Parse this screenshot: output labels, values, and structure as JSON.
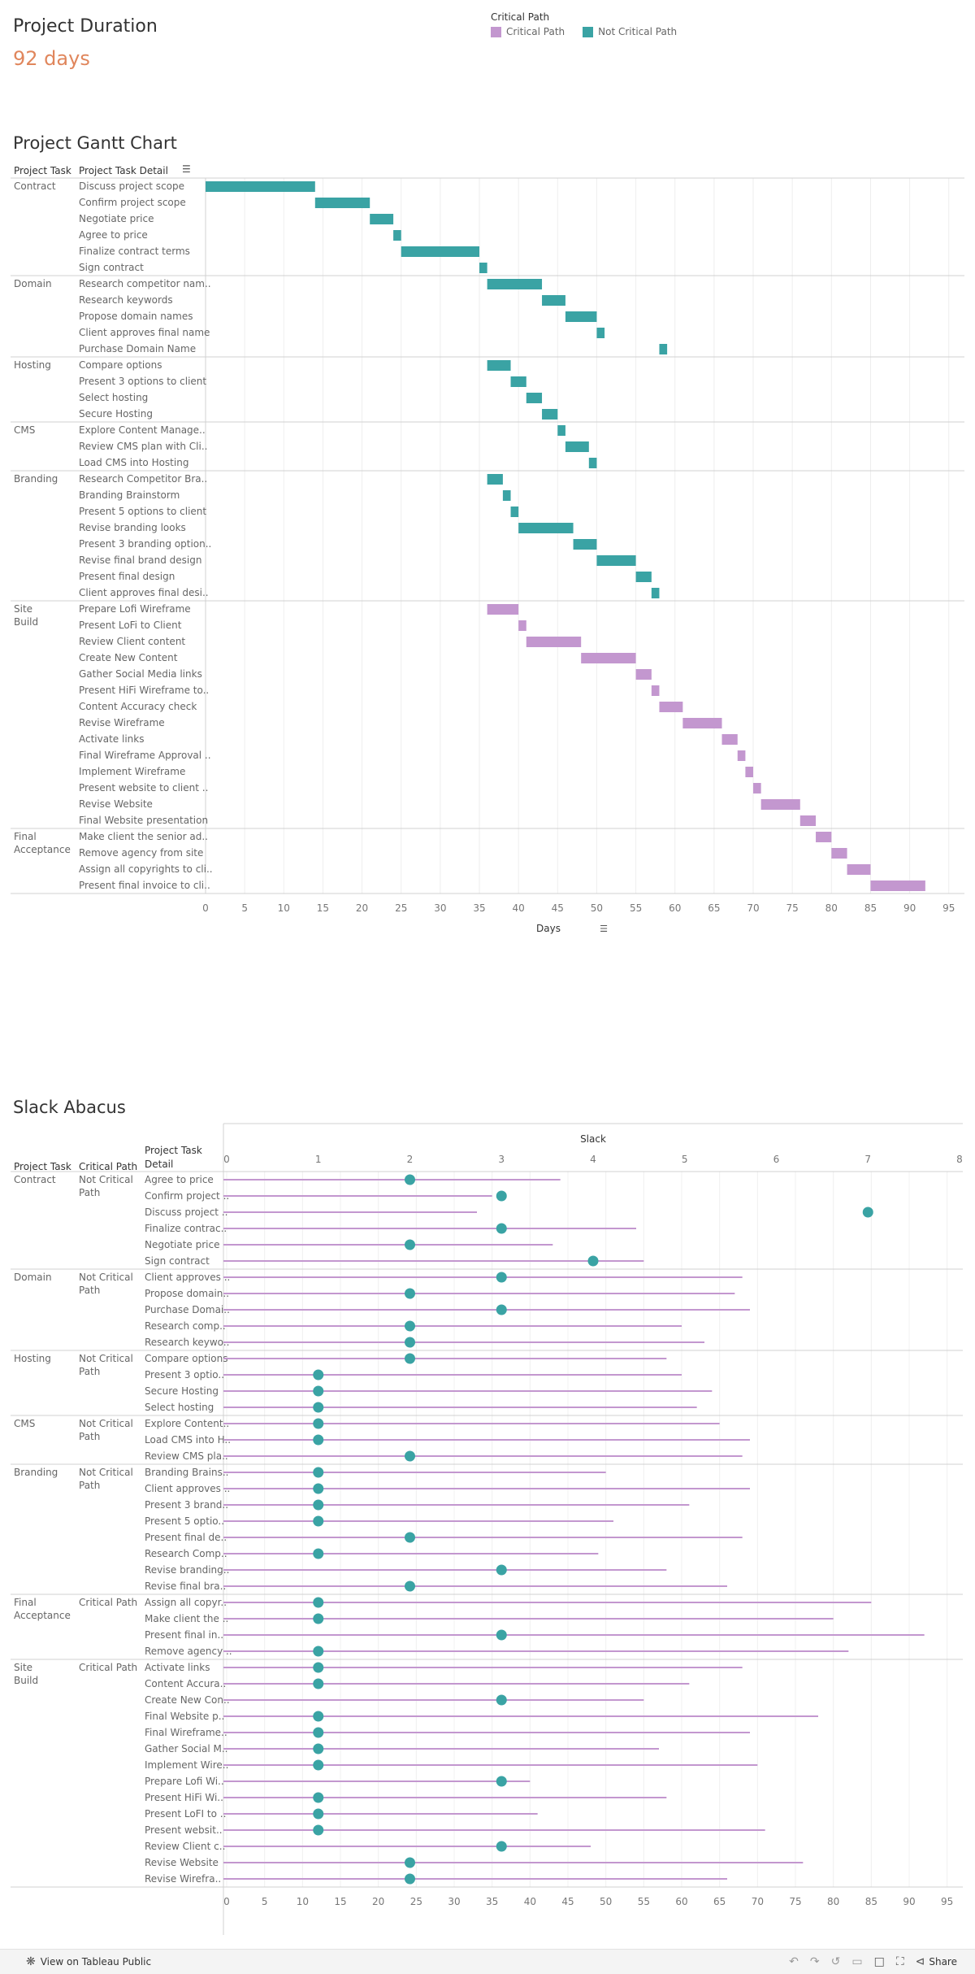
{
  "header": {
    "duration_label": "Project Duration",
    "duration_value": "92 days",
    "legend_title": "Critical Path",
    "legend_items": [
      {
        "label": "Critical Path",
        "color": "#c397cf"
      },
      {
        "label": "Not Critical Path",
        "color": "#3aa3a4"
      }
    ]
  },
  "colors": {
    "critical": "#c397cf",
    "not_critical": "#3aa3a4"
  },
  "gantt": {
    "title": "Project Gantt Chart",
    "col_task": "Project Task",
    "col_detail": "Project Task Detail",
    "sort_icon": "sort-icon",
    "xlabel": "Days"
  },
  "slack": {
    "title": "Slack Abacus",
    "col_task": "Project Task",
    "col_cp": "Critical Path",
    "col_detail": "Project Task Detail",
    "top_axis_label": "Slack"
  },
  "chart_data": [
    {
      "type": "bar",
      "title": "Project Gantt Chart",
      "xlabel": "Days",
      "xlim": [
        0,
        97
      ],
      "xticks": [
        0,
        5,
        10,
        15,
        20,
        25,
        30,
        35,
        40,
        45,
        50,
        55,
        60,
        65,
        70,
        75,
        80,
        85,
        90,
        95
      ],
      "groups": [
        {
          "task": "Contract",
          "rows": [
            {
              "detail": "Discuss project scope",
              "start": 0,
              "end": 14,
              "critical": false
            },
            {
              "detail": "Confirm project scope",
              "start": 14,
              "end": 21,
              "critical": false
            },
            {
              "detail": "Negotiate price",
              "start": 21,
              "end": 24,
              "critical": false
            },
            {
              "detail": "Agree to price",
              "start": 24,
              "end": 25,
              "critical": false
            },
            {
              "detail": "Finalize contract terms",
              "start": 25,
              "end": 35,
              "critical": false
            },
            {
              "detail": "Sign contract",
              "start": 35,
              "end": 36,
              "critical": false
            }
          ]
        },
        {
          "task": "Domain",
          "rows": [
            {
              "detail": "Research competitor nam..",
              "start": 36,
              "end": 43,
              "critical": false
            },
            {
              "detail": "Research keywords",
              "start": 43,
              "end": 46,
              "critical": false
            },
            {
              "detail": "Propose domain names",
              "start": 46,
              "end": 50,
              "critical": false
            },
            {
              "detail": "Client approves final name",
              "start": 50,
              "end": 51,
              "critical": false
            },
            {
              "detail": "Purchase Domain Name",
              "start": 58,
              "end": 59,
              "critical": false
            }
          ]
        },
        {
          "task": "Hosting",
          "rows": [
            {
              "detail": "Compare options",
              "start": 36,
              "end": 39,
              "critical": false
            },
            {
              "detail": "Present 3 options to client",
              "start": 39,
              "end": 41,
              "critical": false
            },
            {
              "detail": "Select hosting",
              "start": 41,
              "end": 43,
              "critical": false
            },
            {
              "detail": "Secure Hosting",
              "start": 43,
              "end": 45,
              "critical": false
            }
          ]
        },
        {
          "task": "CMS",
          "rows": [
            {
              "detail": "Explore Content Manage..",
              "start": 45,
              "end": 46,
              "critical": false
            },
            {
              "detail": "Review CMS plan with Cli..",
              "start": 46,
              "end": 49,
              "critical": false
            },
            {
              "detail": "Load CMS into Hosting",
              "start": 49,
              "end": 50,
              "critical": false
            }
          ]
        },
        {
          "task": "Branding",
          "rows": [
            {
              "detail": "Research Competitor Bra..",
              "start": 36,
              "end": 38,
              "critical": false
            },
            {
              "detail": "Branding Brainstorm",
              "start": 38,
              "end": 39,
              "critical": false
            },
            {
              "detail": "Present 5 options to client",
              "start": 39,
              "end": 40,
              "critical": false
            },
            {
              "detail": "Revise branding looks",
              "start": 40,
              "end": 47,
              "critical": false
            },
            {
              "detail": "Present 3 branding option..",
              "start": 47,
              "end": 50,
              "critical": false
            },
            {
              "detail": "Revise final brand design",
              "start": 50,
              "end": 55,
              "critical": false
            },
            {
              "detail": "Present final design",
              "start": 55,
              "end": 57,
              "critical": false
            },
            {
              "detail": "Client approves final desi..",
              "start": 57,
              "end": 58,
              "critical": false
            }
          ]
        },
        {
          "task": "Site Build",
          "rows": [
            {
              "detail": "Prepare Lofi Wireframe",
              "start": 36,
              "end": 40,
              "critical": true
            },
            {
              "detail": "Present LoFi to Client",
              "start": 40,
              "end": 41,
              "critical": true
            },
            {
              "detail": "Review Client content",
              "start": 41,
              "end": 48,
              "critical": true
            },
            {
              "detail": "Create New Content",
              "start": 48,
              "end": 55,
              "critical": true
            },
            {
              "detail": "Gather Social Media links",
              "start": 55,
              "end": 57,
              "critical": true
            },
            {
              "detail": "Present HiFi Wireframe to..",
              "start": 57,
              "end": 58,
              "critical": true
            },
            {
              "detail": "Content Accuracy check",
              "start": 58,
              "end": 61,
              "critical": true
            },
            {
              "detail": "Revise  Wireframe",
              "start": 61,
              "end": 66,
              "critical": true
            },
            {
              "detail": "Activate links",
              "start": 66,
              "end": 68,
              "critical": true
            },
            {
              "detail": "Final Wireframe Approval ..",
              "start": 68,
              "end": 69,
              "critical": true
            },
            {
              "detail": "Implement Wireframe",
              "start": 69,
              "end": 70,
              "critical": true
            },
            {
              "detail": "Present website to client ..",
              "start": 70,
              "end": 71,
              "critical": true
            },
            {
              "detail": "Revise Website",
              "start": 71,
              "end": 76,
              "critical": true
            },
            {
              "detail": "Final Website presentation",
              "start": 76,
              "end": 78,
              "critical": true
            }
          ]
        },
        {
          "task": "Final Acceptance",
          "rows": [
            {
              "detail": "Make client the senior ad..",
              "start": 78,
              "end": 80,
              "critical": true
            },
            {
              "detail": "Remove agency from site",
              "start": 80,
              "end": 82,
              "critical": true
            },
            {
              "detail": "Assign all copyrights to cli..",
              "start": 82,
              "end": 85,
              "critical": true
            },
            {
              "detail": "Present final invoice to cli..",
              "start": 85,
              "end": 92,
              "critical": true
            }
          ]
        }
      ]
    },
    {
      "type": "scatter",
      "title": "Slack Abacus",
      "top_axis": {
        "label": "Slack",
        "xlim": [
          0,
          8
        ],
        "ticks": [
          0,
          1,
          2,
          3,
          4,
          5,
          6,
          7,
          8
        ]
      },
      "bottom_axis": {
        "xlim": [
          0,
          96
        ],
        "ticks": [
          0,
          5,
          10,
          15,
          20,
          25,
          30,
          35,
          40,
          45,
          50,
          55,
          60,
          65,
          70,
          75,
          80,
          85,
          90,
          95
        ]
      },
      "groups": [
        {
          "task": "Contract",
          "critical_path": "Not Critical Path",
          "rows": [
            {
              "detail": "Agree to price",
              "slack": 2,
              "days": 44
            },
            {
              "detail": "Confirm project ..",
              "slack": 3,
              "days": 35
            },
            {
              "detail": "Discuss project ..",
              "slack": 7,
              "days": 33
            },
            {
              "detail": "Finalize contrac..",
              "slack": 3,
              "days": 54
            },
            {
              "detail": "Negotiate price",
              "slack": 2,
              "days": 43
            },
            {
              "detail": "Sign contract",
              "slack": 4,
              "days": 55
            }
          ]
        },
        {
          "task": "Domain",
          "critical_path": "Not Critical Path",
          "rows": [
            {
              "detail": "Client approves ..",
              "slack": 3,
              "days": 68
            },
            {
              "detail": "Propose domain..",
              "slack": 2,
              "days": 67
            },
            {
              "detail": "Purchase Domai..",
              "slack": 3,
              "days": 69
            },
            {
              "detail": "Research comp..",
              "slack": 2,
              "days": 60
            },
            {
              "detail": "Research keywo..",
              "slack": 2,
              "days": 63
            }
          ]
        },
        {
          "task": "Hosting",
          "critical_path": "Not Critical Path",
          "rows": [
            {
              "detail": "Compare options",
              "slack": 2,
              "days": 58
            },
            {
              "detail": "Present 3 optio..",
              "slack": 1,
              "days": 60
            },
            {
              "detail": "Secure Hosting",
              "slack": 1,
              "days": 64
            },
            {
              "detail": "Select hosting",
              "slack": 1,
              "days": 62
            }
          ]
        },
        {
          "task": "CMS",
          "critical_path": "Not Critical Path",
          "rows": [
            {
              "detail": "Explore Content..",
              "slack": 1,
              "days": 65
            },
            {
              "detail": "Load CMS into H..",
              "slack": 1,
              "days": 69
            },
            {
              "detail": "Review CMS pla..",
              "slack": 2,
              "days": 68
            }
          ]
        },
        {
          "task": "Branding",
          "critical_path": "Not Critical Path",
          "rows": [
            {
              "detail": "Branding Brains..",
              "slack": 1,
              "days": 50
            },
            {
              "detail": "Client approves ..",
              "slack": 1,
              "days": 69
            },
            {
              "detail": "Present 3 brand..",
              "slack": 1,
              "days": 61
            },
            {
              "detail": "Present 5 optio..",
              "slack": 1,
              "days": 51
            },
            {
              "detail": "Present final de..",
              "slack": 2,
              "days": 68
            },
            {
              "detail": "Research Comp..",
              "slack": 1,
              "days": 49
            },
            {
              "detail": "Revise branding..",
              "slack": 3,
              "days": 58
            },
            {
              "detail": "Revise final bra..",
              "slack": 2,
              "days": 66
            }
          ]
        },
        {
          "task": "Final Acceptance",
          "critical_path": "Critical Path",
          "rows": [
            {
              "detail": "Assign all copyr..",
              "slack": 1,
              "days": 85
            },
            {
              "detail": "Make client the ..",
              "slack": 1,
              "days": 80
            },
            {
              "detail": "Present final in..",
              "slack": 3,
              "days": 92
            },
            {
              "detail": "Remove agency ..",
              "slack": 1,
              "days": 82
            }
          ]
        },
        {
          "task": "Site Build",
          "critical_path": "Critical Path",
          "rows": [
            {
              "detail": "Activate links",
              "slack": 1,
              "days": 68
            },
            {
              "detail": "Content Accura..",
              "slack": 1,
              "days": 61
            },
            {
              "detail": "Create New Con..",
              "slack": 3,
              "days": 55
            },
            {
              "detail": "Final Website p..",
              "slack": 1,
              "days": 78
            },
            {
              "detail": "Final Wireframe..",
              "slack": 1,
              "days": 69
            },
            {
              "detail": "Gather Social M..",
              "slack": 1,
              "days": 57
            },
            {
              "detail": "Implement Wire..",
              "slack": 1,
              "days": 70
            },
            {
              "detail": "Prepare Lofi Wi..",
              "slack": 3,
              "days": 40
            },
            {
              "detail": "Present HiFi Wi..",
              "slack": 1,
              "days": 58
            },
            {
              "detail": "Present LoFI to ..",
              "slack": 1,
              "days": 41
            },
            {
              "detail": "Present websit..",
              "slack": 1,
              "days": 71
            },
            {
              "detail": "Review Client c..",
              "slack": 3,
              "days": 48
            },
            {
              "detail": "Revise Website",
              "slack": 2,
              "days": 76
            },
            {
              "detail": "Revise  Wirefra..",
              "slack": 2,
              "days": 66
            }
          ]
        }
      ]
    }
  ],
  "footer": {
    "view_link": "View on Tableau Public",
    "share_label": "Share"
  }
}
